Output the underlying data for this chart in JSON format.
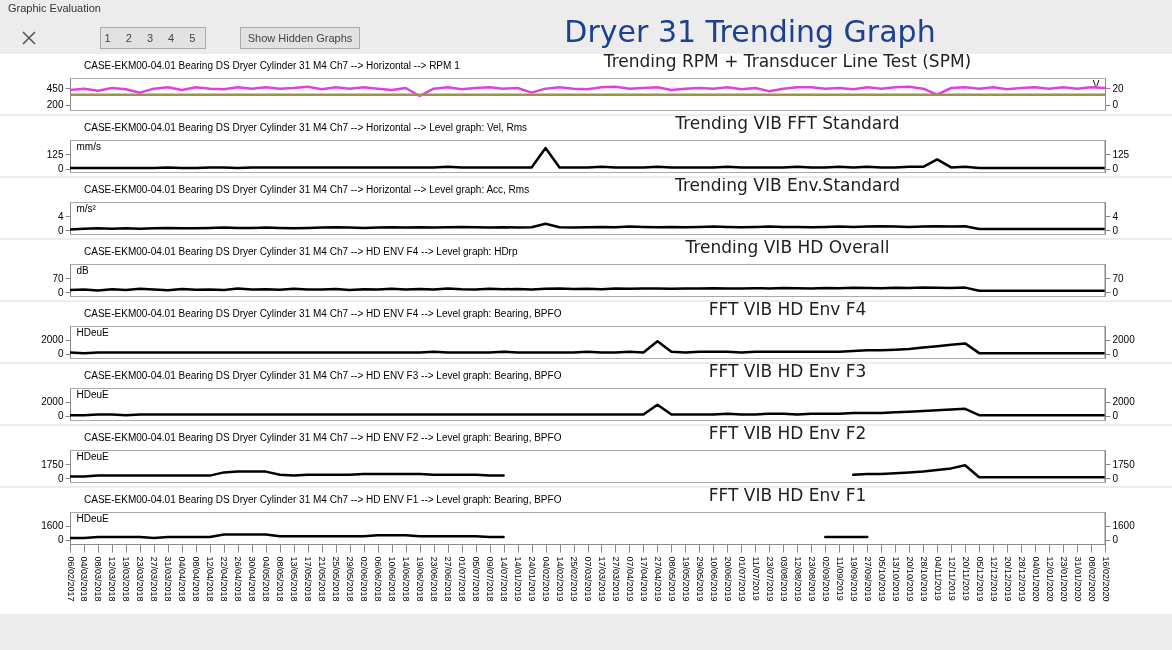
{
  "chart_data": [
    {
      "type": "other",
      "title": "Dryer 31 Trending Graph",
      "annotations": [
        "Graphic Evaluation",
        "1 2 3 4 5",
        "Show Hidden Graphs"
      ]
    },
    {
      "type": "line",
      "title": "Trending RPM + Transducer Line Test (SPM)",
      "y2label": "V",
      "categories": [
        null,
        null,
        null,
        null,
        null,
        null,
        null,
        null,
        null,
        null,
        null,
        null,
        null,
        null,
        null,
        null,
        null,
        null,
        null,
        null,
        null,
        null,
        null,
        null,
        null,
        null,
        null,
        null,
        null,
        null,
        null,
        null,
        null,
        null,
        null,
        null,
        null,
        null,
        null,
        null,
        null,
        null,
        null,
        null,
        null,
        null,
        null,
        null,
        null,
        null,
        null,
        null,
        null,
        null,
        null,
        null,
        null,
        null,
        null,
        null,
        null,
        null,
        null,
        null,
        null,
        null,
        null,
        null,
        null,
        null,
        null,
        null,
        null,
        null,
        null
      ],
      "series": [
        {
          "name": "CASE-EKM00-04.01 Bearing DS Dryer Cylinder 31  M4 Ch7 --> Horizontal --> RPM 1",
          "color": "#e040e0",
          "values": [
            420,
            440,
            410,
            450,
            430,
            380,
            440,
            460,
            420,
            460,
            440,
            430,
            460,
            440,
            460,
            440,
            450,
            470,
            430,
            460,
            440,
            460,
            440,
            420,
            450,
            330,
            440,
            460,
            430,
            450,
            460,
            440,
            450,
            380,
            440,
            460,
            440,
            430,
            460,
            470,
            440,
            450,
            460,
            420,
            440,
            450,
            440,
            460,
            430,
            450,
            400,
            440,
            460,
            460,
            440,
            450,
            430,
            460,
            440,
            460,
            470,
            440,
            350,
            450,
            460,
            440,
            460,
            430,
            450,
            460,
            440,
            460,
            440,
            460,
            450
          ]
        },
        {
          "color": "#9a9448",
          "axis": "y2",
          "values": [
            12,
            12,
            12,
            12,
            12,
            12,
            12,
            12,
            12,
            12,
            12,
            12,
            12,
            12,
            12,
            12,
            12,
            12,
            12,
            12,
            12,
            12,
            12,
            12,
            12,
            12,
            12,
            12,
            12,
            12,
            12,
            12,
            12,
            12,
            12,
            12,
            12,
            12,
            12,
            12,
            12,
            12,
            12,
            12,
            12,
            12,
            12,
            12,
            12,
            12,
            12,
            12,
            12,
            12,
            12,
            12,
            12,
            12,
            12,
            12,
            12,
            12,
            12,
            12,
            12,
            12,
            12,
            12,
            12,
            12,
            12,
            12,
            12,
            12,
            12
          ]
        }
      ],
      "ylim": [
        120,
        600
      ],
      "yticks": [
        200,
        450
      ],
      "y2lim": [
        -6.4,
        32
      ],
      "y2ticks": [
        0,
        20
      ],
      "tick_labels": "y",
      "legend": "top left",
      "line_style": "solid"
    },
    {
      "type": "line",
      "title": "Trending VIB FFT Standard",
      "ylabel": "mm/s",
      "categories": [
        null,
        null,
        null,
        null,
        null,
        null,
        null,
        null,
        null,
        null,
        null,
        null,
        null,
        null,
        null,
        null,
        null,
        null,
        null,
        null,
        null,
        null,
        null,
        null,
        null,
        null,
        null,
        null,
        null,
        null,
        null,
        null,
        null,
        null,
        null,
        null,
        null,
        null,
        null,
        null,
        null,
        null,
        null,
        null,
        null,
        null,
        null,
        null,
        null,
        null,
        null,
        null,
        null,
        null,
        null,
        null,
        null,
        null,
        null,
        null,
        null,
        null,
        null,
        null,
        null,
        null,
        null,
        null,
        null,
        null,
        null,
        null,
        null,
        null,
        null
      ],
      "series": [
        {
          "name": "CASE-EKM00-04.01 Bearing DS Dryer Cylinder 31  M4 Ch7 --> Horizontal --> Level graph: Vel, Rms",
          "color": "#000000",
          "values": [
            5,
            5,
            5,
            5,
            5,
            5,
            5,
            10,
            5,
            5,
            10,
            10,
            5,
            10,
            10,
            10,
            10,
            10,
            10,
            10,
            10,
            10,
            10,
            10,
            10,
            10,
            10,
            15,
            10,
            10,
            10,
            10,
            10,
            10,
            180,
            10,
            10,
            10,
            15,
            10,
            10,
            10,
            15,
            10,
            10,
            10,
            10,
            15,
            10,
            10,
            10,
            10,
            15,
            10,
            10,
            15,
            10,
            15,
            10,
            10,
            15,
            15,
            80,
            10,
            15,
            5,
            5,
            5,
            5,
            5,
            5,
            5,
            5,
            5,
            5
          ]
        }
      ],
      "ylim": [
        -30,
        250
      ],
      "yticks": [
        0,
        125
      ],
      "y2lim": [
        -30,
        250
      ],
      "y2ticks": [
        0,
        125
      ],
      "tick_labels": "y",
      "legend": "top left",
      "line_style": "solid"
    },
    {
      "type": "line",
      "title": "Trending VIB Env.Standard",
      "ylabel": "m/s²",
      "categories": [
        null,
        null,
        null,
        null,
        null,
        null,
        null,
        null,
        null,
        null,
        null,
        null,
        null,
        null,
        null,
        null,
        null,
        null,
        null,
        null,
        null,
        null,
        null,
        null,
        null,
        null,
        null,
        null,
        null,
        null,
        null,
        null,
        null,
        null,
        null,
        null,
        null,
        null,
        null,
        null,
        null,
        null,
        null,
        null,
        null,
        null,
        null,
        null,
        null,
        null,
        null,
        null,
        null,
        null,
        null,
        null,
        null,
        null,
        null,
        null,
        null,
        null,
        null,
        null,
        null,
        null,
        null,
        null,
        null,
        null,
        null,
        null,
        null,
        null,
        null
      ],
      "series": [
        {
          "name": "CASE-EKM00-04.01 Bearing DS Dryer Cylinder 31  M4 Ch7 --> Horizontal --> Level graph: Acc, Rms",
          "color": "#000000",
          "values": [
            0.3,
            0.5,
            0.6,
            0.5,
            0.6,
            0.5,
            0.6,
            0.7,
            0.6,
            0.6,
            0.7,
            0.8,
            0.7,
            0.7,
            0.8,
            0.7,
            0.6,
            0.7,
            0.8,
            0.9,
            0.8,
            0.7,
            0.8,
            0.9,
            0.8,
            0.9,
            0.8,
            0.9,
            1.0,
            0.9,
            0.8,
            0.9,
            0.8,
            0.9,
            1.9,
            0.9,
            0.8,
            0.9,
            1.0,
            0.9,
            1.1,
            1.0,
            0.9,
            1.0,
            0.9,
            1.0,
            1.1,
            1.0,
            0.9,
            1.0,
            1.1,
            1.0,
            1.0,
            0.9,
            1.0,
            1.1,
            1.0,
            1.1,
            1.2,
            1.1,
            1.0,
            1.1,
            1.2,
            1.1,
            1.2,
            0.4,
            0.4,
            0.4,
            0.4,
            0.4,
            0.4,
            0.4,
            0.4,
            0.4,
            0.4
          ]
        }
      ],
      "ylim": [
        -1,
        8
      ],
      "yticks": [
        0,
        4
      ],
      "y2lim": [
        -1,
        8
      ],
      "y2ticks": [
        0,
        4
      ],
      "tick_labels": "y",
      "legend": "top left",
      "line_style": "solid"
    },
    {
      "type": "line",
      "title": "Trending VIB HD Overall",
      "ylabel": "dB",
      "categories": [
        null,
        null,
        null,
        null,
        null,
        null,
        null,
        null,
        null,
        null,
        null,
        null,
        null,
        null,
        null,
        null,
        null,
        null,
        null,
        null,
        null,
        null,
        null,
        null,
        null,
        null,
        null,
        null,
        null,
        null,
        null,
        null,
        null,
        null,
        null,
        null,
        null,
        null,
        null,
        null,
        null,
        null,
        null,
        null,
        null,
        null,
        null,
        null,
        null,
        null,
        null,
        null,
        null,
        null,
        null,
        null,
        null,
        null,
        null,
        null,
        null,
        null,
        null,
        null,
        null,
        null,
        null,
        null,
        null,
        null,
        null,
        null,
        null,
        null,
        null
      ],
      "series": [
        {
          "name": "CASE-EKM00-04.01 Bearing DS Dryer Cylinder 31  M4 Ch7 --> HD ENV F4 --> Level graph: HDrp",
          "color": "#000000",
          "values": [
            10,
            12,
            8,
            14,
            10,
            16,
            12,
            9,
            15,
            11,
            13,
            10,
            17,
            12,
            14,
            11,
            16,
            13,
            12,
            15,
            10,
            14,
            12,
            16,
            13,
            15,
            12,
            17,
            14,
            13,
            16,
            14,
            15,
            13,
            16,
            17,
            15,
            16,
            14,
            17,
            16,
            18,
            17,
            16,
            18,
            17,
            19,
            18,
            17,
            19,
            18,
            20,
            19,
            18,
            20,
            19,
            21,
            20,
            19,
            21,
            20,
            22,
            21,
            20,
            22,
            6,
            6,
            6,
            6,
            6,
            6,
            6,
            6,
            6,
            6
          ]
        }
      ],
      "ylim": [
        -20,
        140
      ],
      "yticks": [
        0,
        70
      ],
      "y2lim": [
        -20,
        140
      ],
      "y2ticks": [
        0,
        70
      ],
      "tick_labels": "y",
      "legend": "top left",
      "line_style": "solid"
    },
    {
      "type": "line",
      "title": "FFT VIB HD Env F4",
      "ylabel": "HDeuE",
      "categories": [
        null,
        null,
        null,
        null,
        null,
        null,
        null,
        null,
        null,
        null,
        null,
        null,
        null,
        null,
        null,
        null,
        null,
        null,
        null,
        null,
        null,
        null,
        null,
        null,
        null,
        null,
        null,
        null,
        null,
        null,
        null,
        null,
        null,
        null,
        null,
        null,
        null,
        null,
        null,
        null,
        null,
        null,
        null,
        null,
        null,
        null,
        null,
        null,
        null,
        null,
        null,
        null,
        null,
        null,
        null,
        null,
        null,
        null,
        null,
        null,
        null,
        null,
        null,
        null,
        null,
        null,
        null,
        null,
        null,
        null,
        null,
        null,
        null,
        null,
        null
      ],
      "series": [
        {
          "name": "CASE-EKM00-04.01 Bearing DS Dryer Cylinder 31  M4 Ch7 --> HD ENV F4 --> Level graph: Bearing, BPFO",
          "color": "#000000",
          "values": [
            200,
            100,
            200,
            200,
            200,
            200,
            200,
            200,
            200,
            200,
            200,
            200,
            200,
            200,
            200,
            200,
            200,
            200,
            200,
            200,
            200,
            200,
            200,
            200,
            200,
            200,
            300,
            200,
            200,
            200,
            200,
            300,
            200,
            200,
            200,
            200,
            200,
            300,
            200,
            200,
            300,
            200,
            1800,
            300,
            200,
            300,
            300,
            300,
            200,
            300,
            300,
            300,
            300,
            300,
            300,
            300,
            400,
            500,
            500,
            600,
            700,
            900,
            1100,
            1300,
            1500,
            100,
            100,
            100,
            100,
            100,
            100,
            100,
            100,
            100,
            100
          ]
        }
      ],
      "ylim": [
        -600,
        4000
      ],
      "yticks": [
        0,
        2000
      ],
      "y2lim": [
        -600,
        4000
      ],
      "y2ticks": [
        0,
        2000
      ],
      "tick_labels": "y",
      "legend": "top left",
      "line_style": "solid"
    },
    {
      "type": "line",
      "title": "FFT VIB HD Env F3",
      "ylabel": "HDeuE",
      "categories": [
        null,
        null,
        null,
        null,
        null,
        null,
        null,
        null,
        null,
        null,
        null,
        null,
        null,
        null,
        null,
        null,
        null,
        null,
        null,
        null,
        null,
        null,
        null,
        null,
        null,
        null,
        null,
        null,
        null,
        null,
        null,
        null,
        null,
        null,
        null,
        null,
        null,
        null,
        null,
        null,
        null,
        null,
        null,
        null,
        null,
        null,
        null,
        null,
        null,
        null,
        null,
        null,
        null,
        null,
        null,
        null,
        null,
        null,
        null,
        null,
        null,
        null,
        null,
        null,
        null,
        null,
        null,
        null,
        null,
        null,
        null,
        null,
        null,
        null,
        null
      ],
      "series": [
        {
          "name": "CASE-EKM00-04.01 Bearing DS Dryer Cylinder 31  M4 Ch7 --> HD ENV F3 --> Level graph: Bearing, BPFO",
          "color": "#000000",
          "values": [
            100,
            100,
            200,
            200,
            100,
            200,
            200,
            200,
            200,
            200,
            200,
            200,
            200,
            200,
            200,
            200,
            200,
            200,
            200,
            200,
            200,
            200,
            200,
            200,
            200,
            200,
            200,
            200,
            200,
            200,
            200,
            200,
            200,
            200,
            200,
            200,
            200,
            200,
            200,
            200,
            200,
            200,
            1600,
            200,
            200,
            200,
            200,
            300,
            200,
            200,
            300,
            300,
            200,
            300,
            300,
            300,
            400,
            400,
            400,
            500,
            600,
            700,
            800,
            900,
            1000,
            100,
            100,
            100,
            100,
            100,
            100,
            100,
            100,
            100,
            100
          ]
        }
      ],
      "ylim": [
        -600,
        4000
      ],
      "yticks": [
        0,
        2000
      ],
      "y2lim": [
        -600,
        4000
      ],
      "y2ticks": [
        0,
        2000
      ],
      "tick_labels": "y",
      "legend": "top left",
      "line_style": "solid"
    },
    {
      "type": "line",
      "title": "FFT VIB HD Env F2",
      "ylabel": "HDeuE",
      "categories": [
        null,
        null,
        null,
        null,
        null,
        null,
        null,
        null,
        null,
        null,
        null,
        null,
        null,
        null,
        null,
        null,
        null,
        null,
        null,
        null,
        null,
        null,
        null,
        null,
        null,
        null,
        null,
        null,
        null,
        null,
        null,
        null,
        null,
        null,
        null,
        null,
        null,
        null,
        null,
        null,
        null,
        null,
        null,
        null,
        null,
        null,
        null,
        null,
        null,
        null,
        null,
        null,
        null,
        null,
        null,
        null,
        null,
        null,
        null,
        null,
        null,
        null,
        null,
        null,
        null,
        null,
        null,
        null,
        null,
        null,
        null,
        null,
        null,
        null,
        null
      ],
      "series": [
        {
          "name": "CASE-EKM00-04.01 Bearing DS Dryer Cylinder 31  M4 Ch7 --> HD ENV F2 --> Level graph: Bearing, BPFO",
          "color": "#000000",
          "values": [
            200,
            200,
            300,
            300,
            300,
            300,
            300,
            300,
            300,
            300,
            300,
            700,
            800,
            800,
            800,
            400,
            300,
            400,
            400,
            400,
            400,
            500,
            500,
            500,
            500,
            500,
            400,
            400,
            400,
            400,
            300,
            300,
            null,
            null,
            null,
            null,
            null,
            null,
            null,
            null,
            null,
            null,
            null,
            null,
            null,
            null,
            null,
            null,
            null,
            null,
            null,
            null,
            null,
            null,
            null,
            null,
            400,
            500,
            500,
            600,
            700,
            800,
            1000,
            1200,
            1600,
            100,
            100,
            100,
            100,
            100,
            100,
            100,
            100,
            100,
            100
          ]
        }
      ],
      "ylim": [
        -500,
        3500
      ],
      "yticks": [
        0,
        1750
      ],
      "y2lim": [
        -500,
        3500
      ],
      "y2ticks": [
        0,
        1750
      ],
      "tick_labels": "y",
      "legend": "top left",
      "line_style": "solid"
    },
    {
      "type": "line",
      "title": "FFT VIB HD Env F1",
      "ylabel": "HDeuE",
      "categories": [
        "06/02/2017",
        "04/03/2018",
        "08/03/2018",
        "12/03/2018",
        "19/03/2018",
        "23/03/2018",
        "27/03/2018",
        "31/03/2018",
        "04/04/2018",
        "08/04/2018",
        "12/04/2018",
        "22/04/2018",
        "26/04/2018",
        "30/04/2018",
        "04/05/2018",
        "08/05/2018",
        "13/05/2018",
        "17/05/2018",
        "21/05/2018",
        "25/05/2018",
        "29/05/2018",
        "02/06/2018",
        "06/06/2018",
        "10/06/2018",
        "14/06/2018",
        "19/06/2018",
        "23/06/2018",
        "27/06/2018",
        "01/07/2018",
        "05/07/2018",
        "09/07/2018",
        "14/07/2018",
        "14/01/2019",
        "24/01/2019",
        "04/02/2019",
        "14/02/2019",
        "25/02/2019",
        "07/03/2019",
        "17/03/2019",
        "27/03/2019",
        "07/04/2019",
        "17/04/2019",
        "27/04/2019",
        "08/05/2019",
        "19/05/2019",
        "29/05/2019",
        "10/06/2019",
        "20/06/2019",
        "01/07/2019",
        "11/07/2019",
        "23/07/2019",
        "03/08/2019",
        "12/08/2019",
        "23/08/2019",
        "02/09/2019",
        "11/09/2019",
        "19/09/2019",
        "27/09/2019",
        "05/10/2019",
        "13/10/2019",
        "20/10/2019",
        "28/10/2019",
        "04/11/2019",
        "12/11/2019",
        "20/11/2019",
        "05/12/2019",
        "12/12/2019",
        "20/12/2019",
        "28/12/2019",
        "04/01/2020",
        "12/01/2020",
        "23/01/2020",
        "31/01/2020",
        "08/02/2020",
        "16/02/2020"
      ],
      "series": [
        {
          "name": "CASE-EKM00-04.01 Bearing DS Dryer Cylinder 31  M4 Ch7 --> HD ENV F1 --> Level graph: Bearing, BPFO",
          "color": "#000000",
          "values": [
            200,
            200,
            300,
            300,
            300,
            300,
            200,
            300,
            300,
            300,
            300,
            600,
            600,
            600,
            600,
            400,
            400,
            400,
            400,
            400,
            400,
            400,
            500,
            500,
            500,
            400,
            400,
            400,
            400,
            400,
            300,
            300,
            null,
            null,
            null,
            null,
            null,
            null,
            null,
            null,
            null,
            null,
            null,
            null,
            null,
            null,
            null,
            null,
            null,
            null,
            null,
            null,
            null,
            null,
            300,
            300,
            300,
            300,
            null,
            null,
            null,
            null,
            null,
            null,
            null,
            null,
            null,
            null,
            null,
            null,
            null,
            null,
            null,
            null,
            null
          ]
        }
      ],
      "ylim": [
        -500,
        3200
      ],
      "yticks": [
        0,
        1600
      ],
      "y2lim": [
        -500,
        3200
      ],
      "y2ticks": [
        0,
        1600
      ],
      "legend": "top left",
      "line_style": "solid"
    }
  ]
}
